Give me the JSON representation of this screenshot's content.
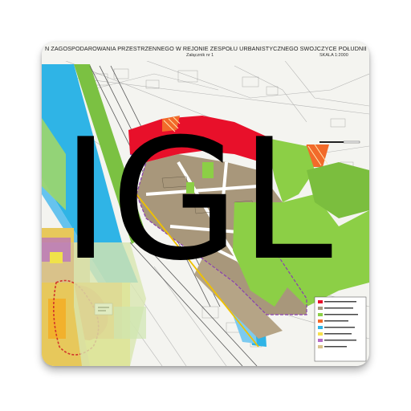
{
  "app_icon": {
    "label": "IGL",
    "label_color": "#000000"
  },
  "map": {
    "title": "N ZAGOSPODAROWANIA PRZESTRZENNEGO W REJONIE ZESPOŁU URBANISTYCZNEGO SWOJCZYCE POŁUDNIE",
    "attachment": "Załącznik nr 1",
    "scale": "SKALA 1:2000",
    "colors": {
      "background": "#f4f4f0",
      "water": "#2fb4e6",
      "residential": "#a8977b",
      "services": "#e8102a",
      "greenery": "#8ccf46",
      "industrial": "#d9c28a"
    }
  }
}
